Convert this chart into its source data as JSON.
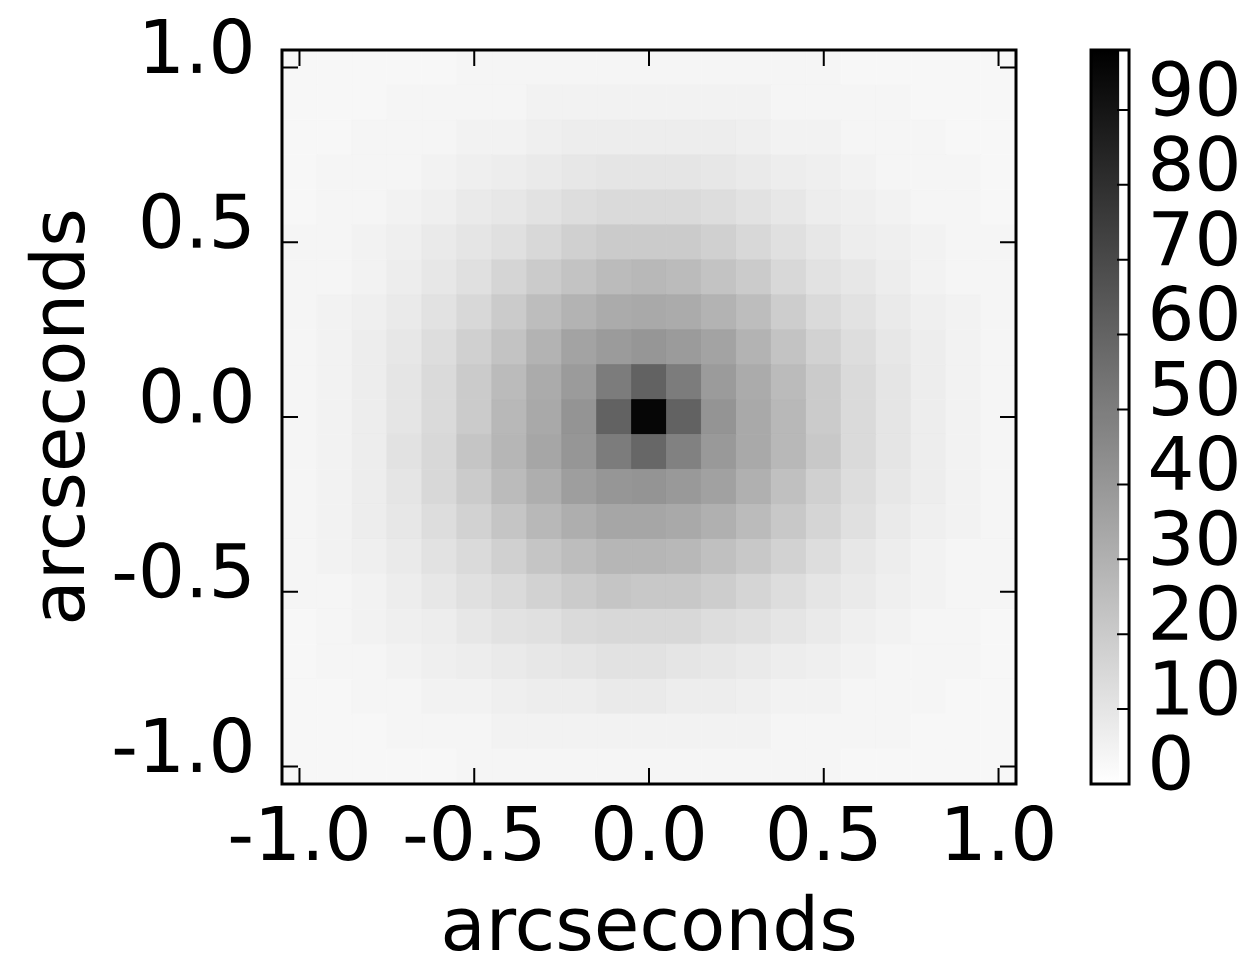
{
  "chart_data": {
    "type": "heatmap",
    "xlabel": "arcseconds",
    "ylabel": "arcseconds",
    "x": [
      -1.0,
      -0.9,
      -0.8,
      -0.7,
      -0.6,
      -0.5,
      -0.4,
      -0.3,
      -0.2,
      -0.1,
      0.0,
      0.1,
      0.2,
      0.3,
      0.4,
      0.5,
      0.6,
      0.7,
      0.8,
      0.9,
      1.0
    ],
    "y": [
      1.0,
      0.9,
      0.8,
      0.7,
      0.6,
      0.5,
      0.4,
      0.3,
      0.2,
      0.1,
      0.0,
      -0.1,
      -0.2,
      -0.3,
      -0.4,
      -0.5,
      -0.6,
      -0.7,
      -0.8,
      -0.9,
      -1.0
    ],
    "xlim": [
      -1.05,
      1.05
    ],
    "ylim": [
      -1.05,
      1.05
    ],
    "xticks": [
      {
        "value": -1.0,
        "label": "-1.0"
      },
      {
        "value": -0.5,
        "label": "-0.5"
      },
      {
        "value": 0.0,
        "label": "0.0"
      },
      {
        "value": 0.5,
        "label": "0.5"
      },
      {
        "value": 1.0,
        "label": "1.0"
      }
    ],
    "yticks": [
      {
        "value": -1.0,
        "label": "-1.0"
      },
      {
        "value": -0.5,
        "label": "-0.5"
      },
      {
        "value": 0.0,
        "label": "0.0"
      },
      {
        "value": 0.5,
        "label": "0.5"
      },
      {
        "value": 1.0,
        "label": "1.0"
      }
    ],
    "clim": [
      0,
      98
    ],
    "cticks": [
      0,
      10,
      20,
      30,
      40,
      50,
      60,
      70,
      80,
      90
    ],
    "cells": [
      [
        3,
        3,
        3,
        3,
        3,
        4,
        4,
        4,
        4,
        4,
        4,
        4,
        4,
        4,
        4,
        4,
        3,
        3,
        3,
        3,
        3
      ],
      [
        3,
        3,
        3,
        4,
        4,
        4,
        4,
        5,
        5,
        5,
        5,
        5,
        5,
        5,
        4,
        4,
        4,
        4,
        3,
        3,
        3
      ],
      [
        3,
        3,
        4,
        4,
        4,
        5,
        5,
        6,
        7,
        7,
        7,
        7,
        7,
        6,
        5,
        5,
        4,
        4,
        4,
        3,
        3
      ],
      [
        3,
        4,
        4,
        4,
        5,
        6,
        7,
        8,
        9,
        10,
        10,
        10,
        9,
        8,
        7,
        6,
        5,
        4,
        4,
        4,
        3
      ],
      [
        3,
        4,
        4,
        5,
        6,
        8,
        9,
        11,
        13,
        14,
        14,
        14,
        13,
        11,
        9,
        7,
        6,
        5,
        4,
        4,
        3
      ],
      [
        4,
        4,
        5,
        6,
        8,
        10,
        12,
        15,
        18,
        20,
        20,
        20,
        18,
        15,
        12,
        9,
        7,
        6,
        5,
        4,
        4
      ],
      [
        4,
        4,
        5,
        7,
        9,
        12,
        16,
        20,
        23,
        26,
        27,
        26,
        23,
        20,
        15,
        11,
        9,
        7,
        5,
        4,
        4
      ],
      [
        4,
        5,
        6,
        8,
        11,
        15,
        20,
        25,
        29,
        32,
        33,
        32,
        29,
        25,
        19,
        14,
        11,
        8,
        6,
        5,
        4
      ],
      [
        4,
        5,
        7,
        9,
        13,
        18,
        23,
        29,
        35,
        38,
        40,
        38,
        35,
        29,
        23,
        17,
        13,
        9,
        7,
        5,
        4
      ],
      [
        4,
        5,
        7,
        10,
        14,
        20,
        26,
        32,
        38,
        50,
        60,
        50,
        38,
        32,
        26,
        20,
        14,
        10,
        7,
        5,
        4
      ],
      [
        4,
        5,
        7,
        10,
        14,
        20,
        27,
        33,
        41,
        60,
        95,
        60,
        41,
        33,
        27,
        20,
        14,
        10,
        7,
        5,
        4
      ],
      [
        4,
        5,
        7,
        11,
        15,
        22,
        28,
        34,
        40,
        50,
        58,
        48,
        39,
        33,
        27,
        21,
        14,
        10,
        7,
        5,
        4
      ],
      [
        4,
        5,
        7,
        10,
        15,
        20,
        26,
        31,
        37,
        40,
        41,
        39,
        36,
        30,
        24,
        18,
        13,
        9,
        7,
        5,
        4
      ],
      [
        4,
        5,
        7,
        9,
        13,
        17,
        22,
        27,
        31,
        34,
        34,
        33,
        30,
        26,
        21,
        16,
        12,
        8,
        6,
        5,
        4
      ],
      [
        4,
        5,
        6,
        8,
        11,
        14,
        18,
        22,
        25,
        28,
        28,
        27,
        24,
        21,
        17,
        13,
        9,
        7,
        5,
        4,
        4
      ],
      [
        4,
        4,
        5,
        7,
        9,
        12,
        14,
        17,
        20,
        22,
        21,
        21,
        19,
        16,
        13,
        10,
        8,
        6,
        5,
        4,
        4
      ],
      [
        3,
        4,
        5,
        6,
        7,
        9,
        11,
        12,
        14,
        15,
        15,
        15,
        13,
        12,
        10,
        8,
        6,
        5,
        4,
        4,
        3
      ],
      [
        3,
        4,
        4,
        5,
        6,
        7,
        8,
        9,
        10,
        11,
        11,
        10,
        9,
        8,
        7,
        6,
        5,
        4,
        4,
        4,
        3
      ],
      [
        3,
        3,
        4,
        4,
        5,
        5,
        6,
        7,
        7,
        8,
        8,
        7,
        7,
        6,
        5,
        5,
        4,
        4,
        4,
        3,
        3
      ],
      [
        3,
        3,
        3,
        4,
        4,
        4,
        5,
        5,
        5,
        5,
        5,
        5,
        5,
        5,
        4,
        4,
        4,
        4,
        3,
        3,
        3
      ],
      [
        3,
        3,
        3,
        3,
        3,
        4,
        4,
        4,
        4,
        4,
        4,
        4,
        4,
        4,
        4,
        4,
        3,
        3,
        3,
        3,
        3
      ]
    ]
  }
}
